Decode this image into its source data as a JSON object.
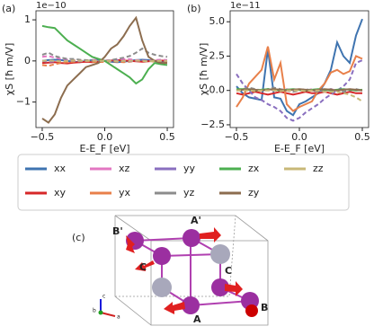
{
  "chart_data": [
    {
      "type": "line",
      "panel": "(a)",
      "offset_text": "1e−10",
      "xlabel": "E-E_F [eV]",
      "ylabel": "χS [ħ m/V]",
      "xlim": [
        -0.55,
        0.55
      ],
      "ylim": [
        -1.62,
        1.22
      ],
      "xticks": [
        {
          "value": -0.5,
          "label": "−0.5"
        },
        {
          "value": 0,
          "label": "0.0"
        },
        {
          "value": 0.5,
          "label": "0.5"
        }
      ],
      "yticks": [
        {
          "value": -1,
          "label": "−1"
        },
        0,
        1
      ],
      "x": [
        -0.5,
        -0.45,
        -0.4,
        -0.35,
        -0.3,
        -0.25,
        -0.2,
        -0.15,
        -0.1,
        -0.05,
        0,
        0.05,
        0.1,
        0.15,
        0.2,
        0.25,
        0.3,
        0.35,
        0.4,
        0.45,
        0.5
      ],
      "series": [
        {
          "name": "xx",
          "color": "#3f74b0",
          "dashed": false,
          "values": [
            0,
            0.02,
            0.03,
            0.02,
            0,
            -0.02,
            -0.03,
            0,
            0.02,
            0.03,
            0,
            -0.02,
            -0.03,
            -0.02,
            0,
            0.02,
            0.03,
            0.02,
            0,
            -0.02,
            0
          ]
        },
        {
          "name": "xy",
          "color": "#d62728",
          "dashed": false,
          "values": [
            -0.05,
            -0.04,
            -0.03,
            -0.05,
            -0.06,
            -0.04,
            -0.03,
            -0.02,
            -0.03,
            -0.02,
            0,
            0.01,
            0.02,
            0.01,
            0,
            -0.01,
            -0.02,
            -0.01,
            0,
            0.01,
            0
          ]
        },
        {
          "name": "xz",
          "color": "#e377c2",
          "dashed": true,
          "values": [
            0.1,
            0.12,
            0.08,
            0.05,
            0.03,
            0.02,
            0.01,
            0,
            0.02,
            0.03,
            0.02,
            0.01,
            0.03,
            0.05,
            0.04,
            0.02,
            0.01,
            0,
            0.02,
            0.03,
            0.02
          ]
        },
        {
          "name": "yx",
          "color": "#e8804a",
          "dashed": true,
          "values": [
            -0.1,
            -0.12,
            -0.08,
            -0.05,
            -0.03,
            -0.02,
            -0.01,
            0,
            -0.02,
            -0.03,
            -0.02,
            -0.01,
            -0.02,
            -0.03,
            -0.02,
            0,
            0.01,
            0,
            -0.02,
            -0.03,
            -0.02
          ]
        },
        {
          "name": "yy",
          "color": "#8a6fbf",
          "dashed": true,
          "values": [
            0,
            -0.02,
            -0.01,
            0,
            0.01,
            0,
            -0.01,
            0,
            0.01,
            0,
            0,
            0,
            0.01,
            0,
            -0.01,
            0,
            0.01,
            0,
            0,
            0,
            0
          ]
        },
        {
          "name": "yz",
          "color": "#8c8c8c",
          "dashed": true,
          "values": [
            0.15,
            0.2,
            0.12,
            0.08,
            0.05,
            0.05,
            0.03,
            0.02,
            0.01,
            0,
            0,
            0.02,
            0.05,
            0.08,
            0.12,
            0.2,
            0.3,
            0.2,
            0.15,
            0.12,
            0.1
          ]
        },
        {
          "name": "zx",
          "color": "#4caf50",
          "dashed": false,
          "values": [
            0.85,
            0.82,
            0.8,
            0.65,
            0.5,
            0.4,
            0.3,
            0.2,
            0.1,
            0.05,
            0,
            -0.1,
            -0.2,
            -0.3,
            -0.4,
            -0.55,
            -0.45,
            -0.2,
            -0.05,
            -0.08,
            -0.1
          ]
        },
        {
          "name": "zy",
          "color": "#8c6d4f",
          "dashed": false,
          "values": [
            -1.4,
            -1.5,
            -1.3,
            -0.9,
            -0.6,
            -0.45,
            -0.3,
            -0.15,
            -0.1,
            -0.05,
            0.1,
            0.3,
            0.4,
            0.6,
            0.85,
            1.05,
            0.5,
            0.1,
            0,
            -0.05,
            -0.05
          ]
        },
        {
          "name": "zz",
          "color": "#c8b878",
          "dashed": true,
          "values": [
            0,
            0.01,
            0,
            -0.01,
            0,
            0.01,
            0,
            0,
            0.01,
            0,
            0,
            0,
            -0.01,
            0,
            0,
            0.01,
            0,
            -0.01,
            0,
            0,
            0
          ]
        }
      ]
    },
    {
      "type": "line",
      "panel": "(b)",
      "offset_text": "1e−11",
      "xlabel": "E-E_F [eV]",
      "ylabel": "χS [ħ m/V]",
      "xlim": [
        -0.55,
        0.55
      ],
      "ylim": [
        -2.7,
        5.8
      ],
      "xticks": [
        {
          "value": -0.5,
          "label": "−0.5"
        },
        {
          "value": 0,
          "label": "0.0"
        },
        {
          "value": 0.5,
          "label": "0.5"
        }
      ],
      "yticks": [
        {
          "value": -2.5,
          "label": "−2.5"
        },
        {
          "value": 0,
          "label": "0.0"
        },
        2.5,
        {
          "value": 5,
          "label": "5.0"
        }
      ],
      "x": [
        -0.5,
        -0.45,
        -0.4,
        -0.35,
        -0.3,
        -0.25,
        -0.2,
        -0.15,
        -0.1,
        -0.05,
        0,
        0.05,
        0.1,
        0.15,
        0.2,
        0.25,
        0.3,
        0.35,
        0.4,
        0.45,
        0.5
      ],
      "series": [
        {
          "color": "#3f74b0",
          "dashed": false,
          "values": [
            0.3,
            -0.2,
            -0.5,
            -0.6,
            -0.7,
            3.0,
            -0.5,
            -0.6,
            -1.5,
            -1.8,
            -1.0,
            -0.8,
            -0.5,
            -0.2,
            0.5,
            1.5,
            3.5,
            2.5,
            2.0,
            4.0,
            5.2
          ]
        },
        {
          "color": "#d62728",
          "dashed": false,
          "values": [
            -0.2,
            -0.3,
            -0.2,
            -0.1,
            -0.2,
            -0.3,
            -0.2,
            -0.1,
            -0.2,
            -0.3,
            -0.2,
            -0.1,
            -0.2,
            -0.2,
            -0.1,
            -0.2,
            -0.3,
            -0.2,
            -0.1,
            -0.2,
            -0.2
          ]
        },
        {
          "color": "#e377c2",
          "dashed": true,
          "values": [
            0.1,
            0,
            0.1,
            0.05,
            0,
            0.1,
            0,
            0.05,
            0.1,
            0,
            0.05,
            0,
            0.1,
            0.05,
            0,
            0.1,
            0,
            0.05,
            0.1,
            0,
            0.05
          ]
        },
        {
          "color": "#e8804a",
          "dashed": false,
          "values": [
            -1.2,
            -0.5,
            0.5,
            1.0,
            1.5,
            3.2,
            0.8,
            2.0,
            -1.0,
            -1.5,
            -1.2,
            -1.0,
            -0.8,
            0.0,
            0.5,
            1.3,
            1.5,
            1.2,
            1.4,
            2.5,
            2.3
          ]
        },
        {
          "color": "#8a6fbf",
          "dashed": true,
          "values": [
            1.2,
            0.5,
            0,
            -0.5,
            -0.7,
            -1.0,
            -1.2,
            -1.5,
            -2.0,
            -2.2,
            -2.0,
            -1.6,
            -1.3,
            -1.0,
            -0.6,
            -0.3,
            0,
            0.3,
            0.8,
            2.0,
            2.2
          ]
        },
        {
          "color": "#8c8c8c",
          "dashed": true,
          "values": [
            0,
            0.1,
            0.2,
            0.1,
            0,
            0.1,
            0.2,
            0.1,
            0,
            -0.1,
            0,
            0.1,
            0,
            -0.1,
            0,
            0.1,
            0,
            -0.1,
            0,
            0.1,
            0
          ]
        },
        {
          "color": "#4caf50",
          "dashed": false,
          "values": [
            0.1,
            0.1,
            0.05,
            0,
            0.05,
            0.1,
            0.05,
            0,
            0.05,
            0.1,
            0.05,
            0,
            0.05,
            0.1,
            0.05,
            0,
            0.05,
            0.1,
            0.05,
            0,
            0.05
          ]
        },
        {
          "color": "#8c6d4f",
          "dashed": false,
          "values": [
            0,
            0.05,
            0.1,
            0.05,
            0,
            0.05,
            0.1,
            0.05,
            0,
            0.05,
            0.1,
            0.05,
            0,
            0.05,
            0.1,
            0.05,
            0,
            0.05,
            0.1,
            0.05,
            0
          ]
        },
        {
          "color": "#c8b878",
          "dashed": true,
          "values": [
            0,
            0,
            0,
            -0.05,
            0,
            0,
            0,
            -0.05,
            0,
            0,
            0,
            -0.05,
            0,
            0,
            -0.1,
            -0.1,
            -0.1,
            -0.2,
            -0.3,
            -0.5,
            -0.8
          ]
        }
      ]
    }
  ],
  "structure": {
    "panel": "(c)",
    "atoms": [
      "A'",
      "B'",
      "C",
      "C",
      "A",
      "B"
    ],
    "axes": [
      "c",
      "b",
      "a"
    ]
  }
}
